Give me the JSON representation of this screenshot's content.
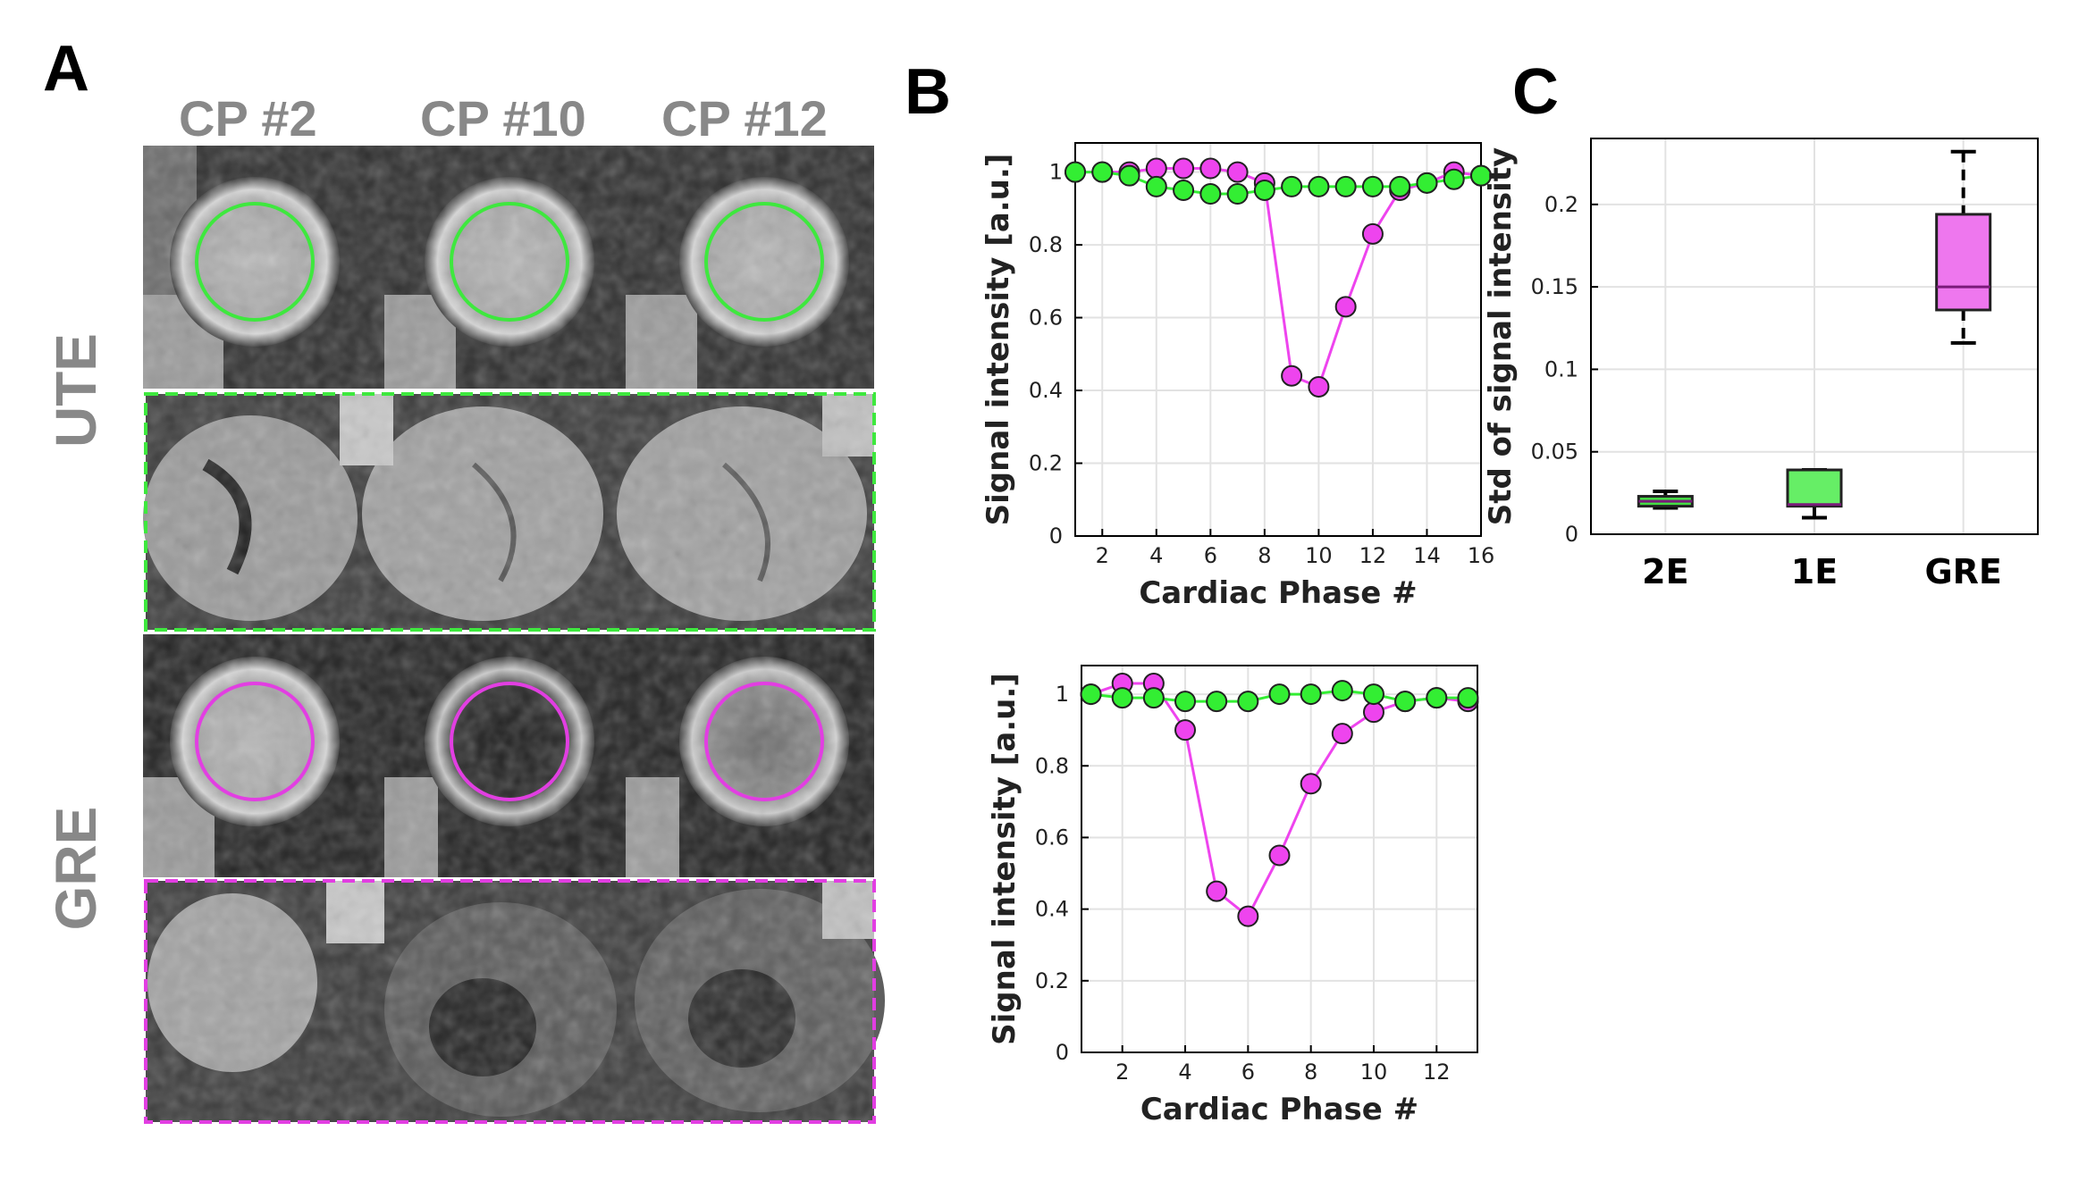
{
  "panels": {
    "a": "A",
    "b": "B",
    "c": "C"
  },
  "panel_a": {
    "column_labels": [
      "CP #2",
      "CP #10",
      "CP #12"
    ],
    "row_labels": [
      "UTE",
      "GRE"
    ],
    "colors": {
      "ute": "#3ee83e",
      "gre": "#e23ee2"
    }
  },
  "chart_data": [
    {
      "type": "line",
      "xlabel": "Cardiac Phase #",
      "ylabel": "Signal intensity [a.u.]",
      "xlim": [
        1,
        16
      ],
      "ylim": [
        0,
        1.08
      ],
      "xticks": [
        2,
        4,
        6,
        8,
        10,
        12,
        14,
        16
      ],
      "yticks": [
        0,
        0.2,
        0.4,
        0.6,
        0.8,
        1
      ],
      "grid": true,
      "series": [
        {
          "color": "#ee44ee",
          "x": [
            1,
            2,
            3,
            4,
            5,
            6,
            7,
            8,
            9,
            10,
            11,
            12,
            13,
            14,
            15,
            16
          ],
          "y": [
            1.0,
            1.0,
            1.0,
            1.01,
            1.01,
            1.01,
            1.0,
            0.97,
            0.44,
            0.41,
            0.63,
            0.83,
            0.95,
            0.97,
            1.0,
            0.99
          ]
        },
        {
          "color": "#33ee33",
          "x": [
            1,
            2,
            3,
            4,
            5,
            6,
            7,
            8,
            9,
            10,
            11,
            12,
            13,
            14,
            15,
            16
          ],
          "y": [
            1.0,
            1.0,
            0.99,
            0.96,
            0.95,
            0.94,
            0.94,
            0.95,
            0.96,
            0.96,
            0.96,
            0.96,
            0.96,
            0.97,
            0.98,
            0.99
          ]
        }
      ]
    },
    {
      "type": "line",
      "xlabel": "Cardiac Phase #",
      "ylabel": "Signal intensity [a.u.]",
      "xlim": [
        0.7,
        13.3
      ],
      "ylim": [
        0,
        1.08
      ],
      "xticks": [
        2,
        4,
        6,
        8,
        10,
        12
      ],
      "yticks": [
        0,
        0.2,
        0.4,
        0.6,
        0.8,
        1
      ],
      "grid": true,
      "series": [
        {
          "color": "#ee44ee",
          "x": [
            1,
            2,
            3,
            4,
            5,
            6,
            7,
            8,
            9,
            10,
            11,
            12,
            13
          ],
          "y": [
            1.0,
            1.03,
            1.03,
            0.9,
            0.45,
            0.38,
            0.55,
            0.75,
            0.89,
            0.95,
            0.98,
            0.99,
            0.98
          ]
        },
        {
          "color": "#33ee33",
          "x": [
            1,
            2,
            3,
            4,
            5,
            6,
            7,
            8,
            9,
            10,
            11,
            12,
            13
          ],
          "y": [
            1.0,
            0.99,
            0.99,
            0.98,
            0.98,
            0.98,
            1.0,
            1.0,
            1.01,
            1.0,
            0.98,
            0.99,
            0.99
          ]
        }
      ]
    },
    {
      "type": "box",
      "ylabel": "Std of signal intensity",
      "categories": [
        "2E",
        "1E",
        "GRE"
      ],
      "ylim": [
        0,
        0.24
      ],
      "yticks": [
        0,
        0.05,
        0.1,
        0.15,
        0.2
      ],
      "grid": true,
      "boxes": [
        {
          "name": "2E",
          "color": "#44dd44",
          "min": 0.016,
          "q1": 0.017,
          "median": 0.02,
          "q3": 0.023,
          "max": 0.026
        },
        {
          "name": "1E",
          "color": "#66ee66",
          "min": 0.01,
          "q1": 0.017,
          "median": 0.018,
          "q3": 0.039,
          "max": 0.039
        },
        {
          "name": "GRE",
          "color": "#ee77ee",
          "min": 0.116,
          "q1": 0.136,
          "median": 0.15,
          "q3": 0.194,
          "max": 0.232
        }
      ]
    }
  ]
}
